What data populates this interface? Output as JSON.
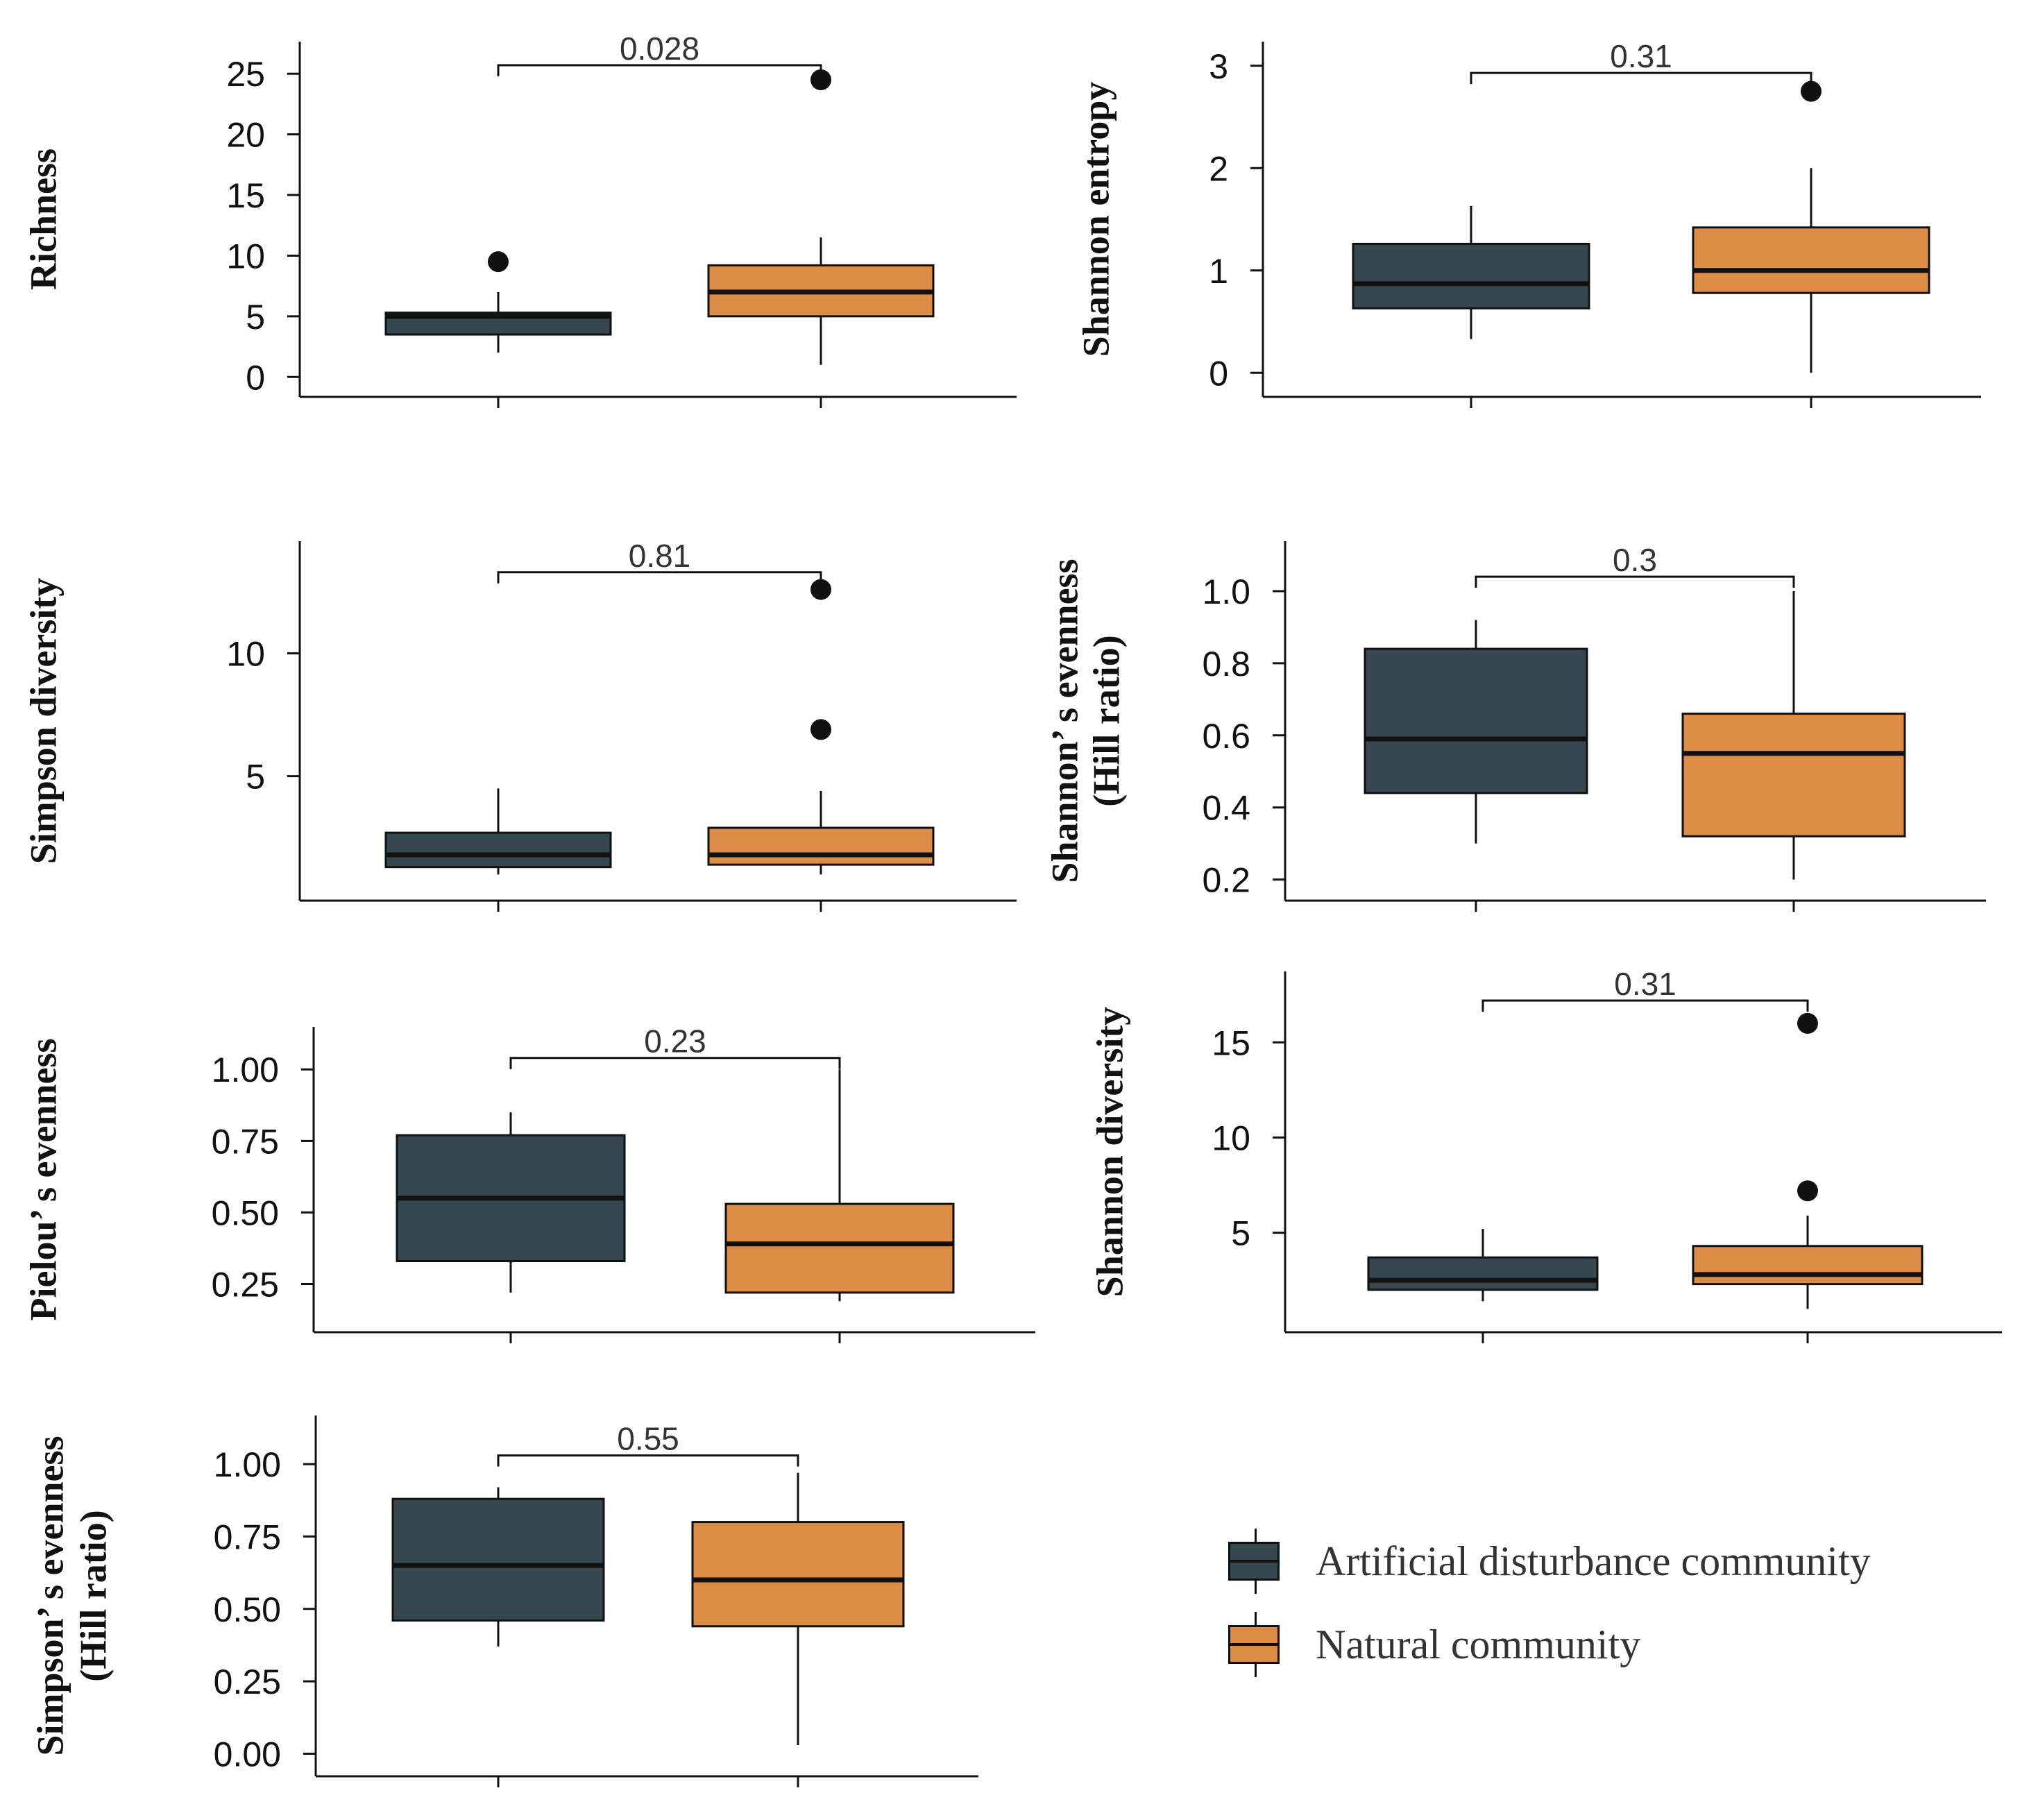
{
  "colors": {
    "artificial": "#36474f",
    "natural": "#dd8c45",
    "ink": "#111111",
    "text": "#333333"
  },
  "legend": {
    "artificial": "Artificial disturbance community",
    "natural": "Natural community"
  },
  "chart_data": [
    {
      "type": "box",
      "ylabel": "Richness",
      "yticks": [
        0,
        5,
        10,
        15,
        20,
        25
      ],
      "ylim": [
        -0.5,
        26.5
      ],
      "pvalue": "0.028",
      "bracket_y": 25.7,
      "pvalue_y": 26.4,
      "boxes": [
        {
          "group": "artificial",
          "q1": 3.5,
          "median": 5,
          "q3": 5.3,
          "whisker_low": 2,
          "whisker_high": 7,
          "outliers": [
            9.5
          ]
        },
        {
          "group": "natural",
          "q1": 5,
          "median": 7,
          "q3": 9.2,
          "whisker_low": 1,
          "whisker_high": 11.5,
          "outliers": [
            24.5
          ]
        }
      ]
    },
    {
      "type": "box",
      "ylabel": "Shannon entropy",
      "yticks": [
        0,
        1,
        2,
        3
      ],
      "ylim": [
        -0.1,
        3.1
      ],
      "pvalue": "0.31",
      "bracket_y": 2.93,
      "pvalue_y": 3.02,
      "boxes": [
        {
          "group": "artificial",
          "q1": 0.63,
          "median": 0.87,
          "q3": 1.26,
          "whisker_low": 0.33,
          "whisker_high": 1.63,
          "outliers": []
        },
        {
          "group": "natural",
          "q1": 0.78,
          "median": 1.0,
          "q3": 1.42,
          "whisker_low": 0.0,
          "whisker_high": 2.0,
          "outliers": [
            2.75
          ]
        }
      ]
    },
    {
      "type": "box",
      "ylabel": "Simpson diversity",
      "yticks": [
        5,
        10
      ],
      "ylim": [
        0.5,
        14
      ],
      "pvalue": "0.81",
      "bracket_y": 13.3,
      "pvalue_y": 13.8,
      "boxes": [
        {
          "group": "artificial",
          "q1": 1.3,
          "median": 1.8,
          "q3": 2.7,
          "whisker_low": 1.0,
          "whisker_high": 4.5,
          "outliers": []
        },
        {
          "group": "natural",
          "q1": 1.4,
          "median": 1.8,
          "q3": 2.9,
          "whisker_low": 1.0,
          "whisker_high": 4.4,
          "outliers": [
            6.9,
            12.6
          ]
        }
      ]
    },
    {
      "type": "box",
      "ylabel": "Shannon’ s evenness (Hill ratio)",
      "ylabel_lines": [
        "Shannon’ s evenness",
        "(Hill ratio)"
      ],
      "yticks": [
        0.2,
        0.4,
        0.6,
        0.8,
        1.0
      ],
      "ytick_labels": [
        "0.2",
        "0.4",
        "0.6",
        "0.8",
        "1.0"
      ],
      "ylim": [
        0.18,
        1.1
      ],
      "pvalue": "0.3",
      "bracket_y": 1.04,
      "pvalue_y": 1.08,
      "boxes": [
        {
          "group": "artificial",
          "q1": 0.44,
          "median": 0.59,
          "q3": 0.84,
          "whisker_low": 0.3,
          "whisker_high": 0.92,
          "outliers": []
        },
        {
          "group": "natural",
          "q1": 0.32,
          "median": 0.55,
          "q3": 0.66,
          "whisker_low": 0.2,
          "whisker_high": 1.0,
          "outliers": []
        }
      ]
    },
    {
      "type": "box",
      "ylabel": "Pielou’ s evenness",
      "yticks": [
        0.25,
        0.5,
        0.75,
        1.0
      ],
      "ytick_labels": [
        "0.25",
        "0.50",
        "0.75",
        "1.00"
      ],
      "ylim": [
        0.13,
        1.1
      ],
      "pvalue": "0.23",
      "bracket_y": 1.04,
      "pvalue_y": 1.09,
      "boxes": [
        {
          "group": "artificial",
          "q1": 0.33,
          "median": 0.55,
          "q3": 0.77,
          "whisker_low": 0.22,
          "whisker_high": 0.85,
          "outliers": []
        },
        {
          "group": "natural",
          "q1": 0.22,
          "median": 0.39,
          "q3": 0.53,
          "whisker_low": 0.19,
          "whisker_high": 1.0,
          "outliers": []
        }
      ]
    },
    {
      "type": "box",
      "ylabel": "Shannon diversity",
      "yticks": [
        5,
        10,
        15
      ],
      "ylim": [
        0.5,
        18
      ],
      "pvalue": "0.31",
      "bracket_y": 17.2,
      "pvalue_y": 17.7,
      "boxes": [
        {
          "group": "artificial",
          "q1": 2.0,
          "median": 2.5,
          "q3": 3.7,
          "whisker_low": 1.4,
          "whisker_high": 5.2,
          "outliers": []
        },
        {
          "group": "natural",
          "q1": 2.3,
          "median": 2.8,
          "q3": 4.3,
          "whisker_low": 1.0,
          "whisker_high": 5.9,
          "outliers": [
            7.2,
            16.0
          ]
        }
      ]
    },
    {
      "type": "box",
      "ylabel": "Simpson’ s evenness (Hill ratio)",
      "ylabel_lines": [
        "Simpson’ s evenness",
        "(Hill ratio)"
      ],
      "yticks": [
        0.0,
        0.25,
        0.5,
        0.75,
        1.0
      ],
      "ytick_labels": [
        "0.00",
        "0.25",
        "0.50",
        "0.75",
        "1.00"
      ],
      "ylim": [
        -0.03,
        1.12
      ],
      "pvalue": "0.55",
      "bracket_y": 1.03,
      "pvalue_y": 1.08,
      "boxes": [
        {
          "group": "artificial",
          "q1": 0.46,
          "median": 0.65,
          "q3": 0.88,
          "whisker_low": 0.37,
          "whisker_high": 0.92,
          "outliers": []
        },
        {
          "group": "natural",
          "q1": 0.44,
          "median": 0.6,
          "q3": 0.8,
          "whisker_low": 0.03,
          "whisker_high": 0.97,
          "outliers": []
        }
      ]
    }
  ]
}
